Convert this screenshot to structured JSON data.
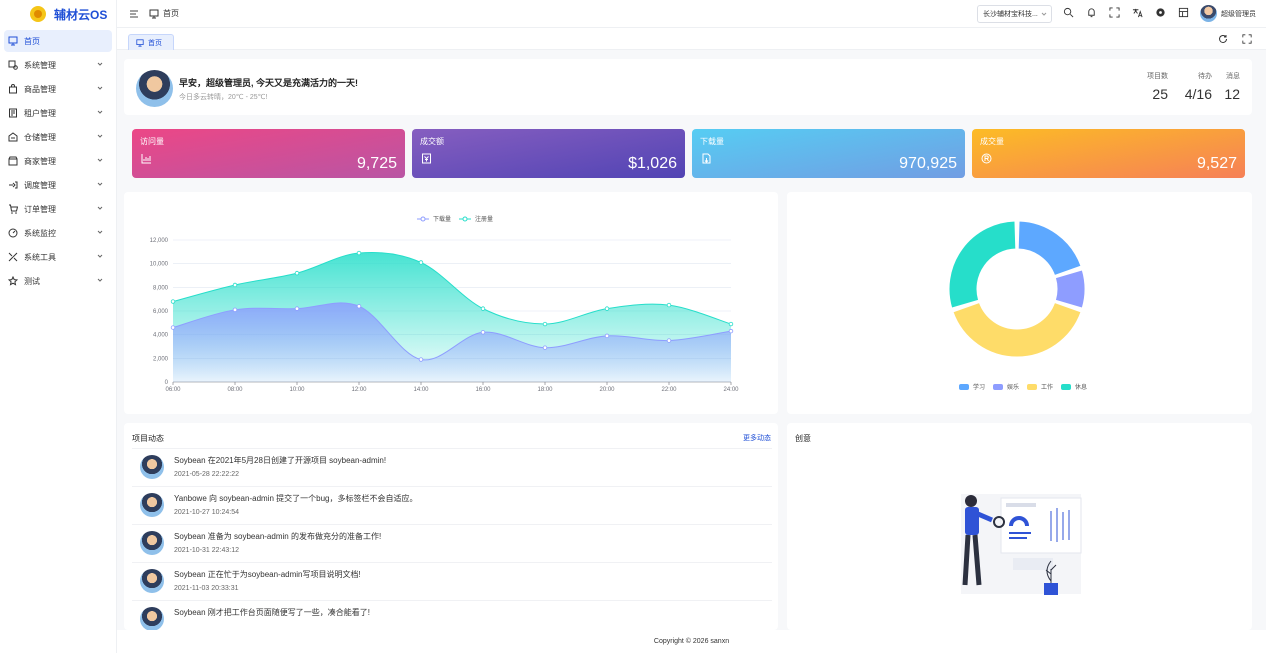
{
  "app": {
    "name": "辅材云OS"
  },
  "sidebar": {
    "items": [
      {
        "label": "首页",
        "icon": "monitor-icon",
        "active": true
      },
      {
        "label": "系统管理",
        "icon": "settings-icon"
      },
      {
        "label": "商品管理",
        "icon": "bag-icon"
      },
      {
        "label": "租户管理",
        "icon": "tenant-icon"
      },
      {
        "label": "仓储管理",
        "icon": "warehouse-icon"
      },
      {
        "label": "商家管理",
        "icon": "store-icon"
      },
      {
        "label": "调度管理",
        "icon": "dispatch-icon"
      },
      {
        "label": "订单管理",
        "icon": "cart-icon"
      },
      {
        "label": "系统监控",
        "icon": "gauge-icon"
      },
      {
        "label": "系统工具",
        "icon": "tools-icon"
      },
      {
        "label": "测试",
        "icon": "star-icon"
      }
    ]
  },
  "header": {
    "breadcrumb": "首页",
    "tenant": "长沙辅材宝科技...",
    "user_name": "超级管理员"
  },
  "tabs": [
    {
      "label": "首页"
    }
  ],
  "welcome": {
    "greeting": "早安，超级管理员, 今天又是充满活力的一天!",
    "weather": "今日多云转晴，20℃ - 25℃!",
    "stats": [
      {
        "label": "项目数",
        "value": "25"
      },
      {
        "label": "待办",
        "value": "4/16"
      },
      {
        "label": "消息",
        "value": "12"
      }
    ]
  },
  "cards": [
    {
      "title": "访问量",
      "value": "9,725",
      "icon": "bar-chart-icon",
      "from": "#ec4786",
      "to": "#b955a4"
    },
    {
      "title": "成交额",
      "value": "$1,026",
      "icon": "money-icon",
      "from": "#865ec0",
      "to": "#5144b4"
    },
    {
      "title": "下载量",
      "value": "970,925",
      "icon": "download-file-icon",
      "from": "#56cdf3",
      "to": "#719de3"
    },
    {
      "title": "成交量",
      "value": "9,527",
      "icon": "trademark-icon",
      "from": "#fcbc25",
      "to": "#f68057"
    }
  ],
  "line_chart": {
    "legend": [
      "下载量",
      "注册量"
    ],
    "colors": {
      "download": "#8e9dff",
      "register": "#26deca"
    }
  },
  "chart_data": [
    {
      "type": "area",
      "categories": [
        "06:00",
        "08:00",
        "10:00",
        "12:00",
        "14:00",
        "16:00",
        "18:00",
        "20:00",
        "22:00",
        "24:00"
      ],
      "series": [
        {
          "name": "下载量",
          "values": [
            4600,
            6100,
            6200,
            6400,
            1900,
            4200,
            2900,
            3900,
            3500,
            4300
          ]
        },
        {
          "name": "注册量",
          "values": [
            6800,
            8200,
            9200,
            10900,
            10100,
            6200,
            4900,
            6200,
            6500,
            4900
          ]
        }
      ],
      "ylim": [
        0,
        12000
      ],
      "yticks": [
        "0",
        "2,000",
        "4,000",
        "6,000",
        "8,000",
        "10,000",
        "12,000"
      ],
      "legend_position": "top"
    },
    {
      "type": "pie",
      "donut": true,
      "categories": [
        "学习",
        "娱乐",
        "工作",
        "休息"
      ],
      "values": [
        20,
        10,
        40,
        30
      ],
      "colors": [
        "#5da8ff",
        "#8e9dff",
        "#fedc69",
        "#26deca"
      ],
      "legend_position": "bottom"
    }
  ],
  "feed": {
    "title": "项目动态",
    "more": "更多动态",
    "items": [
      {
        "text": "Soybean 在2021年5月28日创建了开源项目 soybean-admin!",
        "date": "2021-05-28 22:22:22"
      },
      {
        "text": "Yanbowe 向 soybean-admin 提交了一个bug，多标签栏不会自适应。",
        "date": "2021-10-27 10:24:54"
      },
      {
        "text": "Soybean 准备为 soybean-admin 的发布做充分的准备工作!",
        "date": "2021-10-31 22:43:12"
      },
      {
        "text": "Soybean 正在忙于为soybean-admin写项目说明文档!",
        "date": "2021-11-03 20:33:31"
      },
      {
        "text": "Soybean 刚才把工作台页面随便写了一些，凑合能看了!",
        "date": ""
      }
    ]
  },
  "creative": {
    "title": "创意"
  },
  "footer": {
    "copyright": "Copyright © 2026 sanxn"
  }
}
